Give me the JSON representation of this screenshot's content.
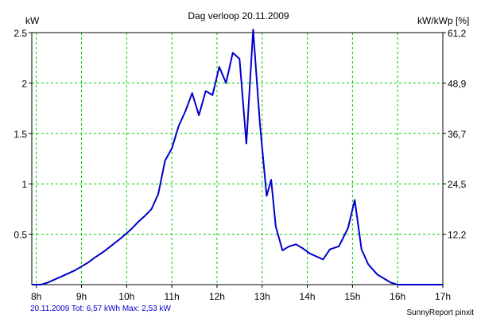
{
  "chart_data": {
    "type": "line",
    "title": "Dag  verloop 20.11.2009",
    "y_left_unit": "kW",
    "y_right_unit": "kW/kWp [%]",
    "x_ticks": [
      "8h",
      "9h",
      "10h",
      "11h",
      "12h",
      "13h",
      "14h",
      "15h",
      "16h",
      "17h"
    ],
    "y_left_ticks": [
      "0.5",
      "1",
      "1.5",
      "2",
      "2.5"
    ],
    "y_left_tick_values": [
      0.5,
      1,
      1.5,
      2,
      2.5
    ],
    "y_right_ticks": [
      "12,2",
      "24,5",
      "36,7",
      "48,9",
      "61,2"
    ],
    "xlim": [
      7.9,
      17.0
    ],
    "ylim": [
      0,
      2.5
    ],
    "grid": true,
    "line_color": "#0000cc",
    "grid_color": "#00cc00",
    "series": [
      {
        "x": [
          7.9,
          8.1,
          8.25,
          8.4,
          8.55,
          8.7,
          8.85,
          9.0,
          9.15,
          9.3,
          9.5,
          9.7,
          9.9,
          10.1,
          10.25,
          10.4,
          10.55,
          10.7,
          10.85,
          11.0,
          11.15,
          11.3,
          11.45,
          11.6,
          11.75,
          11.9,
          12.05,
          12.2,
          12.35,
          12.5,
          12.65,
          12.8,
          12.95,
          13.1,
          13.2,
          13.3,
          13.45,
          13.6,
          13.75,
          13.9,
          14.05,
          14.2,
          14.35,
          14.5,
          14.7,
          14.9,
          15.05,
          15.2,
          15.35,
          15.55,
          15.7,
          15.85,
          16.0,
          16.15,
          16.3,
          16.45,
          16.6,
          16.8,
          17.0
        ],
        "y": [
          0.0,
          0.0,
          0.02,
          0.05,
          0.08,
          0.11,
          0.14,
          0.18,
          0.22,
          0.27,
          0.33,
          0.4,
          0.47,
          0.55,
          0.62,
          0.68,
          0.75,
          0.9,
          1.23,
          1.35,
          1.57,
          1.72,
          1.9,
          1.68,
          1.92,
          1.88,
          2.16,
          2.0,
          2.3,
          2.24,
          1.4,
          2.53,
          1.6,
          0.88,
          1.04,
          0.58,
          0.34,
          0.38,
          0.4,
          0.36,
          0.31,
          0.28,
          0.25,
          0.35,
          0.38,
          0.56,
          0.84,
          0.35,
          0.2,
          0.1,
          0.06,
          0.02,
          0.0,
          0.0,
          0.0,
          0.0,
          0.0,
          0.0,
          0.0
        ]
      }
    ]
  },
  "footer": {
    "summary": "20.11.2009 Tot: 6,57 kWh Max: 2,53 kW",
    "credit": "SunnyReport pinxit"
  }
}
